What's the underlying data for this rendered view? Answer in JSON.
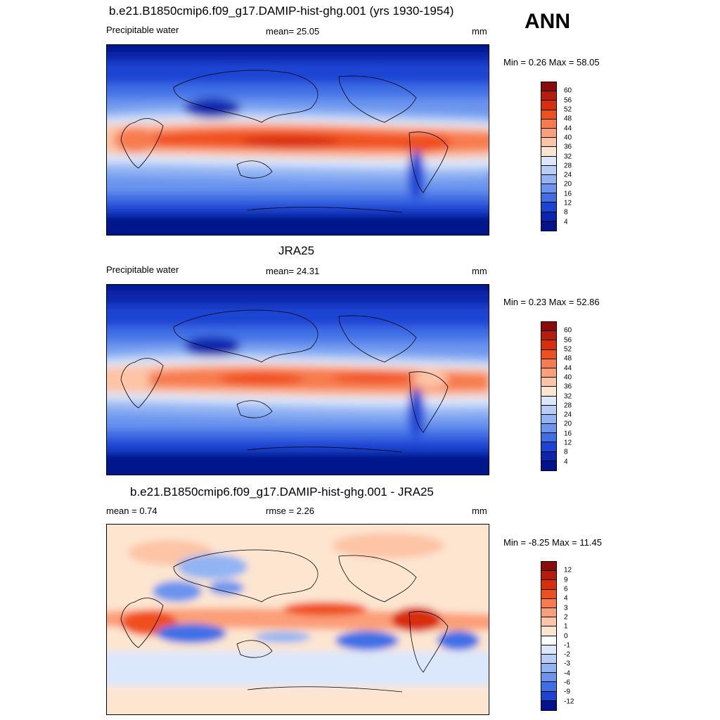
{
  "season": "ANN",
  "panels": [
    {
      "id": "model",
      "title": "b.e21.B1850cmip6.f09_g17.DAMIP-hist-ghg.001 (yrs 1930-1954)",
      "left_label": "Precipitable water",
      "center_label": "mean=  25.05",
      "units": "mm",
      "minmax": "Min =   0.26 Max =  58.05",
      "colorbar": {
        "levels": [
          "60",
          "56",
          "52",
          "48",
          "44",
          "40",
          "36",
          "32",
          "28",
          "24",
          "20",
          "16",
          "12",
          "8",
          "4"
        ],
        "colors": [
          "#8b0a0a",
          "#b51e0c",
          "#d92e0e",
          "#f0501e",
          "#f77b4e",
          "#fb9f78",
          "#fdc4a6",
          "#fde5d0",
          "#dbe7fb",
          "#b7cff8",
          "#92b4f3",
          "#6a94ee",
          "#3f6fe6",
          "#1b44d4",
          "#0c25ae",
          "#00128c"
        ]
      }
    },
    {
      "id": "obs",
      "title": "JRA25",
      "left_label": "Precipitable water",
      "center_label": "mean=  24.31",
      "units": "mm",
      "minmax": "Min =   0.23 Max =  52.86",
      "colorbar": {
        "levels": [
          "60",
          "56",
          "52",
          "48",
          "44",
          "40",
          "36",
          "32",
          "28",
          "24",
          "20",
          "16",
          "12",
          "8",
          "4"
        ],
        "colors": [
          "#8b0a0a",
          "#b51e0c",
          "#d92e0e",
          "#f0501e",
          "#f77b4e",
          "#fb9f78",
          "#fdc4a6",
          "#fde5d0",
          "#dbe7fb",
          "#b7cff8",
          "#92b4f3",
          "#6a94ee",
          "#3f6fe6",
          "#1b44d4",
          "#0c25ae",
          "#00128c"
        ]
      }
    },
    {
      "id": "diff",
      "title": "b.e21.B1850cmip6.f09_g17.DAMIP-hist-ghg.001 - JRA25",
      "left_label": "mean =   0.74",
      "center_label": "rmse =   2.26",
      "units": "mm",
      "minmax": "Min =  -8.25 Max =  11.45",
      "colorbar": {
        "levels": [
          "12",
          "9",
          "6",
          "4",
          "3",
          "2",
          "1",
          "0",
          "-1",
          "-2",
          "-3",
          "-4",
          "-6",
          "-9",
          "-12"
        ],
        "colors": [
          "#8b0a0a",
          "#b51e0c",
          "#d92e0e",
          "#f0501e",
          "#f77b4e",
          "#fb9f78",
          "#fdc4a6",
          "#fde5d0",
          "#ffffff",
          "#dbe7fb",
          "#b7cff8",
          "#92b4f3",
          "#6a94ee",
          "#3f6fe6",
          "#1b44d4",
          "#00128c"
        ]
      }
    }
  ]
}
